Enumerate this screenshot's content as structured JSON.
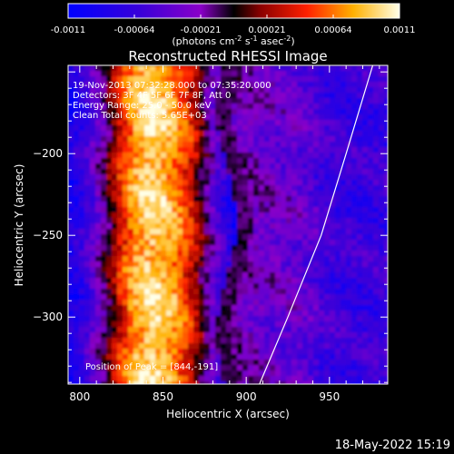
{
  "colorbar": {
    "tick_labels": [
      "-0.0011",
      "-0.00064",
      "-0.00021",
      "0.00021",
      "0.00064",
      "0.0011"
    ],
    "units_line": "(photons cm",
    "units_exp1": "-2",
    "units_mid1": " s",
    "units_exp2": "-1",
    "units_mid2": " asec",
    "units_exp3": "-2",
    "units_end": ")"
  },
  "chart_data": {
    "type": "heatmap",
    "title": "Reconstructed RHESSI Image",
    "xlabel": "Heliocentric X (arcsec)",
    "ylabel": "Heliocentric Y (arcsec)",
    "xlim": [
      793,
      985
    ],
    "ylim": [
      -341,
      -146
    ],
    "xticks": [
      800,
      850,
      900,
      950
    ],
    "yticks": [
      -200,
      -250,
      -300
    ],
    "colorbar_range": [
      -0.0011,
      0.0011
    ],
    "limb_curve": [
      [
        908,
        -341
      ],
      [
        925,
        -300
      ],
      [
        945,
        -250
      ],
      [
        960,
        -200
      ],
      [
        976,
        -146
      ]
    ],
    "annotations": [
      "19-Nov-2013 07:32:28.000 to 07:35:20.000",
      "Detectors: 3F 4F 5F 6F 7F 8F, Att 0",
      "Energy Range: 25.0 - 50.0 keV",
      "Clean     Total counts: 5.65E+03",
      "Position of Peak = [844,-191]"
    ]
  },
  "footer": {
    "timestamp": "18-May-2022 15:19"
  }
}
